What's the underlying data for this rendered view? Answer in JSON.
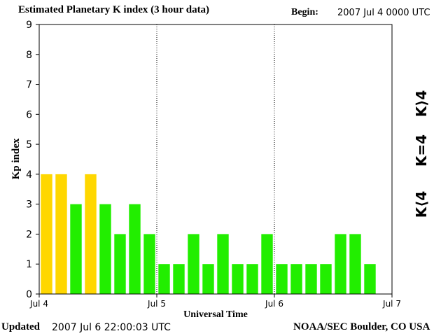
{
  "header": {
    "title": "Estimated Planetary K index (3 hour data)",
    "begin_label": "Begin:",
    "begin_value": "2007 Jul 4 0000 UTC"
  },
  "footer": {
    "updated_label": "Updated",
    "updated_value": "2007 Jul  6 22:00:03 UTC",
    "organization": "NOAA/SEC Boulder, CO USA"
  },
  "legend": [
    {
      "label": "K>4",
      "display": "K⟩4",
      "color": "#ff2a00"
    },
    {
      "label": "K=4",
      "display": "K=4",
      "color": "#ffd700"
    },
    {
      "label": "K<4",
      "display": "K⟨4",
      "color": "#22ee00"
    }
  ],
  "chart_data": {
    "type": "bar",
    "title": "Estimated Planetary K index (3 hour data)",
    "xlabel": "Universal Time",
    "ylabel": "Kp index",
    "ylim": [
      0,
      9
    ],
    "yticks": [
      0,
      1,
      2,
      3,
      4,
      5,
      6,
      7,
      8,
      9
    ],
    "xticks": [
      "Jul 4",
      "Jul 5",
      "Jul 6",
      "Jul 7"
    ],
    "interval_hours": 3,
    "series": [
      {
        "values": [
          4,
          4,
          3,
          4,
          3,
          2,
          3,
          2,
          1,
          1,
          2,
          1,
          2,
          1,
          1,
          2,
          1,
          1,
          1,
          1,
          2,
          2,
          1
        ]
      }
    ],
    "colors": {
      "below_4": "#22ee00",
      "equal_4": "#ffd700",
      "above_4": "#ff2a00"
    },
    "day_separators": [
      "Jul 5",
      "Jul 6"
    ],
    "grid": false
  }
}
